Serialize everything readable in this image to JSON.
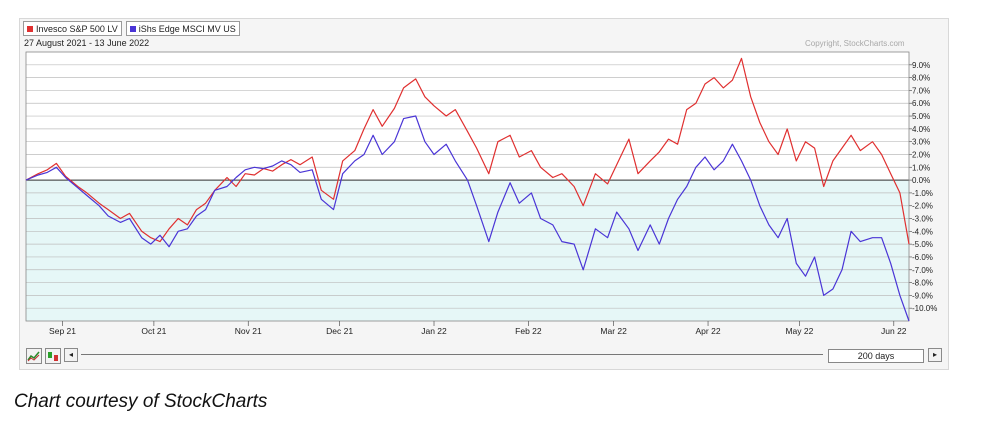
{
  "legend": [
    {
      "label": "Invesco S&P 500 LV",
      "color": "#e03030"
    },
    {
      "label": "iShs Edge MSCI MV US",
      "color": "#4a35d6"
    }
  ],
  "date_range": "27 August 2021 - 13 June 2022",
  "copyright": "Copyright, StockCharts.com",
  "toolbar": {
    "range_label": "200 days",
    "left_arrow": "◂",
    "right_arrow": "▸"
  },
  "caption": "Chart courtesy of StockCharts",
  "colors": {
    "background": "#f5f5f5",
    "fill_below_zero": "#e6f7f7",
    "grid": "#bdbdbd"
  },
  "chart_data": {
    "type": "line",
    "xlim": [
      "2021-08-27",
      "2022-06-13"
    ],
    "ylim": [
      -11,
      10
    ],
    "grid": true,
    "legend_position": "top-left",
    "x_ticks": [
      {
        "date": "2021-09-08",
        "label": "Sep 21"
      },
      {
        "date": "2021-10-08",
        "label": "Oct 21"
      },
      {
        "date": "2021-11-08",
        "label": "Nov 21"
      },
      {
        "date": "2021-12-08",
        "label": "Dec 21"
      },
      {
        "date": "2022-01-08",
        "label": "Jan 22"
      },
      {
        "date": "2022-02-08",
        "label": "Feb 22"
      },
      {
        "date": "2022-03-08",
        "label": "Mar 22"
      },
      {
        "date": "2022-04-08",
        "label": "Apr 22"
      },
      {
        "date": "2022-05-08",
        "label": "May 22"
      },
      {
        "date": "2022-06-08",
        "label": "Jun 22"
      }
    ],
    "y_ticks": [
      {
        "value": 9,
        "label": "9.0%"
      },
      {
        "value": 8,
        "label": "8.0%"
      },
      {
        "value": 7,
        "label": "7.0%"
      },
      {
        "value": 6,
        "label": "6.0%"
      },
      {
        "value": 5,
        "label": "5.0%"
      },
      {
        "value": 4,
        "label": "4.0%"
      },
      {
        "value": 3,
        "label": "3.0%"
      },
      {
        "value": 2,
        "label": "2.0%"
      },
      {
        "value": 1,
        "label": "1.0%"
      },
      {
        "value": 0,
        "label": "0.0%"
      },
      {
        "value": -1,
        "label": "-1.0%"
      },
      {
        "value": -2,
        "label": "-2.0%"
      },
      {
        "value": -3,
        "label": "-3.0%"
      },
      {
        "value": -4,
        "label": "-4.0%"
      },
      {
        "value": -5,
        "label": "-5.0%"
      },
      {
        "value": -6,
        "label": "-6.0%"
      },
      {
        "value": -7,
        "label": "-7.0%"
      },
      {
        "value": -8,
        "label": "-8.0%"
      },
      {
        "value": -9,
        "label": "-9.0%"
      },
      {
        "value": -10,
        "label": "-10.0%"
      }
    ],
    "series": [
      {
        "name": "Invesco S&P 500 LV",
        "color": "#e03030",
        "points": [
          [
            "2021-08-27",
            0
          ],
          [
            "2021-08-31",
            0.5
          ],
          [
            "2021-09-03",
            0.8
          ],
          [
            "2021-09-06",
            1.3
          ],
          [
            "2021-09-09",
            0.3
          ],
          [
            "2021-09-13",
            -0.5
          ],
          [
            "2021-09-16",
            -1.0
          ],
          [
            "2021-09-20",
            -1.8
          ],
          [
            "2021-09-23",
            -2.3
          ],
          [
            "2021-09-27",
            -3.0
          ],
          [
            "2021-09-30",
            -2.6
          ],
          [
            "2021-10-04",
            -4.0
          ],
          [
            "2021-10-07",
            -4.5
          ],
          [
            "2021-10-10",
            -4.8
          ],
          [
            "2021-10-13",
            -3.8
          ],
          [
            "2021-10-16",
            -3.0
          ],
          [
            "2021-10-19",
            -3.5
          ],
          [
            "2021-10-22",
            -2.3
          ],
          [
            "2021-10-25",
            -1.8
          ],
          [
            "2021-10-28",
            -0.8
          ],
          [
            "2021-11-01",
            0.2
          ],
          [
            "2021-11-04",
            -0.5
          ],
          [
            "2021-11-07",
            0.5
          ],
          [
            "2021-11-10",
            0.4
          ],
          [
            "2021-11-13",
            0.9
          ],
          [
            "2021-11-16",
            0.7
          ],
          [
            "2021-11-19",
            1.2
          ],
          [
            "2021-11-22",
            1.6
          ],
          [
            "2021-11-25",
            1.2
          ],
          [
            "2021-11-29",
            1.8
          ],
          [
            "2021-12-02",
            -0.8
          ],
          [
            "2021-12-06",
            -1.5
          ],
          [
            "2021-12-09",
            1.5
          ],
          [
            "2021-12-13",
            2.3
          ],
          [
            "2021-12-16",
            4.0
          ],
          [
            "2021-12-19",
            5.5
          ],
          [
            "2021-12-22",
            4.2
          ],
          [
            "2021-12-26",
            5.6
          ],
          [
            "2021-12-29",
            7.2
          ],
          [
            "2022-01-02",
            7.9
          ],
          [
            "2022-01-05",
            6.5
          ],
          [
            "2022-01-08",
            5.8
          ],
          [
            "2022-01-12",
            5.0
          ],
          [
            "2022-01-15",
            5.5
          ],
          [
            "2022-01-19",
            3.8
          ],
          [
            "2022-01-22",
            2.5
          ],
          [
            "2022-01-26",
            0.5
          ],
          [
            "2022-01-29",
            3.0
          ],
          [
            "2022-02-02",
            3.5
          ],
          [
            "2022-02-05",
            1.8
          ],
          [
            "2022-02-09",
            2.3
          ],
          [
            "2022-02-12",
            1.0
          ],
          [
            "2022-02-16",
            0.2
          ],
          [
            "2022-02-19",
            0.5
          ],
          [
            "2022-02-23",
            -0.5
          ],
          [
            "2022-02-26",
            -2.0
          ],
          [
            "2022-03-02",
            0.5
          ],
          [
            "2022-03-06",
            -0.3
          ],
          [
            "2022-03-09",
            1.2
          ],
          [
            "2022-03-13",
            3.2
          ],
          [
            "2022-03-16",
            0.5
          ],
          [
            "2022-03-20",
            1.5
          ],
          [
            "2022-03-23",
            2.2
          ],
          [
            "2022-03-26",
            3.2
          ],
          [
            "2022-03-29",
            2.8
          ],
          [
            "2022-04-01",
            5.5
          ],
          [
            "2022-04-04",
            6.0
          ],
          [
            "2022-04-07",
            7.5
          ],
          [
            "2022-04-10",
            8.0
          ],
          [
            "2022-04-13",
            7.2
          ],
          [
            "2022-04-16",
            7.8
          ],
          [
            "2022-04-19",
            9.5
          ],
          [
            "2022-04-22",
            6.5
          ],
          [
            "2022-04-25",
            4.5
          ],
          [
            "2022-04-28",
            3.0
          ],
          [
            "2022-05-01",
            2.0
          ],
          [
            "2022-05-04",
            4.0
          ],
          [
            "2022-05-07",
            1.5
          ],
          [
            "2022-05-10",
            3.0
          ],
          [
            "2022-05-13",
            2.5
          ],
          [
            "2022-05-16",
            -0.5
          ],
          [
            "2022-05-19",
            1.5
          ],
          [
            "2022-05-22",
            2.5
          ],
          [
            "2022-05-25",
            3.5
          ],
          [
            "2022-05-28",
            2.3
          ],
          [
            "2022-06-01",
            3.0
          ],
          [
            "2022-06-04",
            2.0
          ],
          [
            "2022-06-07",
            0.5
          ],
          [
            "2022-06-10",
            -1.0
          ],
          [
            "2022-06-13",
            -5.0
          ]
        ]
      },
      {
        "name": "iShs Edge MSCI MV US",
        "color": "#4a35d6",
        "points": [
          [
            "2021-08-27",
            0
          ],
          [
            "2021-08-31",
            0.4
          ],
          [
            "2021-09-03",
            0.6
          ],
          [
            "2021-09-06",
            1.0
          ],
          [
            "2021-09-09",
            0.2
          ],
          [
            "2021-09-13",
            -0.6
          ],
          [
            "2021-09-16",
            -1.2
          ],
          [
            "2021-09-20",
            -2.0
          ],
          [
            "2021-09-23",
            -2.8
          ],
          [
            "2021-09-27",
            -3.3
          ],
          [
            "2021-09-30",
            -3.0
          ],
          [
            "2021-10-04",
            -4.5
          ],
          [
            "2021-10-07",
            -5.0
          ],
          [
            "2021-10-10",
            -4.3
          ],
          [
            "2021-10-13",
            -5.2
          ],
          [
            "2021-10-16",
            -4.0
          ],
          [
            "2021-10-19",
            -3.8
          ],
          [
            "2021-10-22",
            -2.8
          ],
          [
            "2021-10-25",
            -2.3
          ],
          [
            "2021-10-28",
            -0.8
          ],
          [
            "2021-11-01",
            -0.5
          ],
          [
            "2021-11-04",
            0.2
          ],
          [
            "2021-11-07",
            0.8
          ],
          [
            "2021-11-10",
            1.0
          ],
          [
            "2021-11-13",
            0.9
          ],
          [
            "2021-11-16",
            1.1
          ],
          [
            "2021-11-19",
            1.5
          ],
          [
            "2021-11-22",
            1.2
          ],
          [
            "2021-11-25",
            0.6
          ],
          [
            "2021-11-29",
            0.8
          ],
          [
            "2021-12-02",
            -1.5
          ],
          [
            "2021-12-06",
            -2.3
          ],
          [
            "2021-12-09",
            0.5
          ],
          [
            "2021-12-13",
            1.5
          ],
          [
            "2021-12-16",
            2.0
          ],
          [
            "2021-12-19",
            3.5
          ],
          [
            "2021-12-22",
            2.0
          ],
          [
            "2021-12-26",
            3.0
          ],
          [
            "2021-12-29",
            4.8
          ],
          [
            "2022-01-02",
            5.0
          ],
          [
            "2022-01-05",
            3.0
          ],
          [
            "2022-01-08",
            2.0
          ],
          [
            "2022-01-12",
            2.8
          ],
          [
            "2022-01-15",
            1.5
          ],
          [
            "2022-01-19",
            0.0
          ],
          [
            "2022-01-22",
            -2.0
          ],
          [
            "2022-01-26",
            -4.8
          ],
          [
            "2022-01-29",
            -2.5
          ],
          [
            "2022-02-02",
            -0.2
          ],
          [
            "2022-02-05",
            -1.8
          ],
          [
            "2022-02-09",
            -1.0
          ],
          [
            "2022-02-12",
            -3.0
          ],
          [
            "2022-02-16",
            -3.5
          ],
          [
            "2022-02-19",
            -4.8
          ],
          [
            "2022-02-23",
            -5.0
          ],
          [
            "2022-02-26",
            -7.0
          ],
          [
            "2022-03-02",
            -3.8
          ],
          [
            "2022-03-06",
            -4.5
          ],
          [
            "2022-03-09",
            -2.5
          ],
          [
            "2022-03-13",
            -3.8
          ],
          [
            "2022-03-16",
            -5.5
          ],
          [
            "2022-03-20",
            -3.5
          ],
          [
            "2022-03-23",
            -5.0
          ],
          [
            "2022-03-26",
            -3.0
          ],
          [
            "2022-03-29",
            -1.5
          ],
          [
            "2022-04-01",
            -0.5
          ],
          [
            "2022-04-04",
            1.0
          ],
          [
            "2022-04-07",
            1.8
          ],
          [
            "2022-04-10",
            0.8
          ],
          [
            "2022-04-13",
            1.5
          ],
          [
            "2022-04-16",
            2.8
          ],
          [
            "2022-04-19",
            1.5
          ],
          [
            "2022-04-22",
            0.0
          ],
          [
            "2022-04-25",
            -2.0
          ],
          [
            "2022-04-28",
            -3.5
          ],
          [
            "2022-05-01",
            -4.5
          ],
          [
            "2022-05-04",
            -3.0
          ],
          [
            "2022-05-07",
            -6.5
          ],
          [
            "2022-05-10",
            -7.5
          ],
          [
            "2022-05-13",
            -6.0
          ],
          [
            "2022-05-16",
            -9.0
          ],
          [
            "2022-05-19",
            -8.5
          ],
          [
            "2022-05-22",
            -7.0
          ],
          [
            "2022-05-25",
            -4.0
          ],
          [
            "2022-05-28",
            -4.8
          ],
          [
            "2022-06-01",
            -4.5
          ],
          [
            "2022-06-04",
            -4.5
          ],
          [
            "2022-06-07",
            -6.5
          ],
          [
            "2022-06-10",
            -9.0
          ],
          [
            "2022-06-13",
            -11.0
          ]
        ]
      }
    ]
  }
}
